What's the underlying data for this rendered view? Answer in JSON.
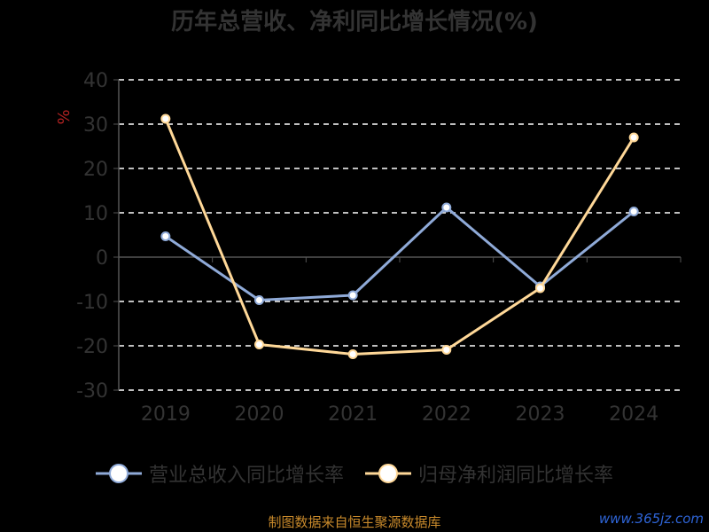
{
  "chart_data": {
    "type": "line",
    "title": "历年总营收、净利同比增长情况(%)",
    "ylabel": "%",
    "categories": [
      "2019",
      "2020",
      "2021",
      "2022",
      "2023",
      "2024"
    ],
    "ylim": [
      -30,
      40
    ],
    "yticks": [
      "40",
      "30",
      "20",
      "10",
      "0",
      "-10",
      "-20",
      "-30"
    ],
    "grid": true,
    "legend_position": "bottom",
    "series": [
      {
        "name": "营业总收入同比增长率",
        "color": "#8faad8",
        "values": [
          4.7,
          -9.7,
          -8.6,
          11.2,
          -6.6,
          10.3
        ]
      },
      {
        "name": "归母净利润同比增长率",
        "color": "#ffd898",
        "values": [
          31.2,
          -19.7,
          -21.9,
          -20.9,
          -7.0,
          27.0
        ]
      }
    ]
  },
  "footer": {
    "source": "制图数据来自恒生聚源数据库",
    "watermark": "www.365jz.com"
  }
}
